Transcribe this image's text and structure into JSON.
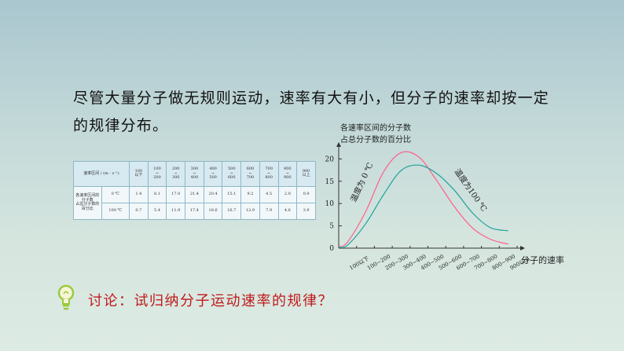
{
  "text": {
    "line1": "尽管大量分子做无规则运动，速率有大有小，但分子的速率却按一定",
    "line2": "的规律分布。",
    "discussion": "讨论：试归纳分子运动速率的规律？"
  },
  "table": {
    "header_label": "速率区间 / (m · s⁻¹)",
    "ranges": [
      [
        "100",
        "以下"
      ],
      [
        "100",
        "~",
        "200"
      ],
      [
        "200",
        "~",
        "300"
      ],
      [
        "300",
        "~",
        "400"
      ],
      [
        "400",
        "~",
        "500"
      ],
      [
        "500",
        "~",
        "600"
      ],
      [
        "600",
        "~",
        "700"
      ],
      [
        "700",
        "~",
        "800"
      ],
      [
        "800",
        "~",
        "900"
      ],
      [
        "900",
        "以上"
      ]
    ],
    "row_label": [
      "各速率区间的",
      "分子数",
      "占总分子数的",
      "百分比"
    ],
    "rows": [
      {
        "temp": "0 ℃",
        "values": [
          "1.4",
          "8.1",
          "17.0",
          "21.4",
          "20.4",
          "15.1",
          "9.2",
          "4.5",
          "2.0",
          "0.9"
        ]
      },
      {
        "temp": "100 ℃",
        "values": [
          "0.7",
          "5.4",
          "11.9",
          "17.4",
          "18.6",
          "16.7",
          "12.9",
          "7.9",
          "4.6",
          "3.9"
        ]
      }
    ]
  },
  "chart_data": {
    "type": "line",
    "ylabel": [
      "各速率区间的分子数",
      "占总分子数的百分比"
    ],
    "xlabel": "分子的速率",
    "categories": [
      "100以下",
      "100~200",
      "200~300",
      "300~400",
      "400~500",
      "500~600",
      "600~700",
      "700~800",
      "800~900",
      "900以上"
    ],
    "yticks": [
      "0",
      "5",
      "10",
      "15",
      "20"
    ],
    "ylim": [
      0,
      22
    ],
    "series": [
      {
        "name": "温度为 0 ℃",
        "color": "#ff5f8a",
        "values": [
          1.4,
          8.1,
          17.0,
          21.4,
          20.4,
          15.1,
          9.2,
          4.5,
          2.0,
          0.9
        ]
      },
      {
        "name": "温度为100 ℃",
        "color": "#1fa39a",
        "values": [
          0.7,
          5.4,
          11.9,
          17.4,
          18.6,
          16.7,
          12.9,
          7.9,
          4.6,
          3.9
        ]
      }
    ]
  },
  "icons": {
    "discussion": "lightbulb-icon"
  }
}
